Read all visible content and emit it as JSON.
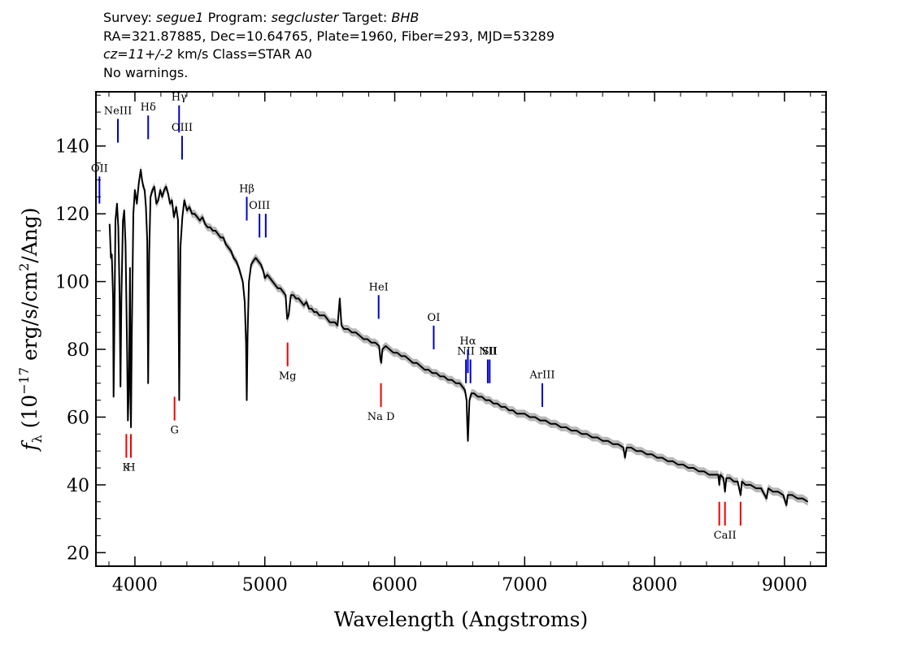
{
  "header": {
    "survey_label": "Survey:",
    "survey": "segue1",
    "program_label": "Program:",
    "program": "segcluster",
    "target_label": "Target:",
    "target": "BHB",
    "coords": "RA=321.87885, Dec=10.64765, Plate=1960, Fiber=293, MJD=53289",
    "cz": "cz=11+/-2",
    "cz_unit": "km/s",
    "class_text": "Class=STAR A0",
    "warnings": "No warnings."
  },
  "colors": {
    "spectrum": "#000000",
    "error_band": "#b0b0b0",
    "emission_line": "#0000cc",
    "absorption_line": "#ee0000"
  },
  "chart_data": {
    "type": "line",
    "xlabel": "Wavelength (Angstroms)",
    "ylabel": "f_λ (10^-17 erg/s/cm^2/Ang)",
    "xlim": [
      3700,
      9320
    ],
    "ylim": [
      16,
      156
    ],
    "x_ticks": [
      "4000",
      "5000",
      "6000",
      "7000",
      "8000",
      "9000"
    ],
    "y_ticks": [
      "20",
      "40",
      "60",
      "80",
      "100",
      "120",
      "140"
    ],
    "grid": false,
    "legend": "none",
    "series": [
      {
        "points": [
          [
            3805,
            117
          ],
          [
            3815,
            107
          ],
          [
            3822,
            108
          ],
          [
            3832,
            95
          ],
          [
            3836,
            66
          ],
          [
            3840,
            80
          ],
          [
            3850,
            118
          ],
          [
            3862,
            123
          ],
          [
            3872,
            116
          ],
          [
            3882,
            96
          ],
          [
            3889,
            69
          ],
          [
            3896,
            95
          ],
          [
            3908,
            118
          ],
          [
            3918,
            121
          ],
          [
            3928,
            111
          ],
          [
            3940,
            80
          ],
          [
            3946,
            59
          ],
          [
            3954,
            70
          ],
          [
            3962,
            104
          ],
          [
            3966,
            65
          ],
          [
            3970,
            57
          ],
          [
            3976,
            84
          ],
          [
            3988,
            120
          ],
          [
            4000,
            127
          ],
          [
            4015,
            123
          ],
          [
            4030,
            129
          ],
          [
            4045,
            133
          ],
          [
            4055,
            130
          ],
          [
            4065,
            128
          ],
          [
            4075,
            127
          ],
          [
            4085,
            122
          ],
          [
            4095,
            112
          ],
          [
            4102,
            70
          ],
          [
            4110,
            108
          ],
          [
            4120,
            125
          ],
          [
            4135,
            127
          ],
          [
            4150,
            128
          ],
          [
            4165,
            123
          ],
          [
            4180,
            124
          ],
          [
            4195,
            127
          ],
          [
            4210,
            125
          ],
          [
            4225,
            127
          ],
          [
            4240,
            128
          ],
          [
            4255,
            126
          ],
          [
            4270,
            123
          ],
          [
            4285,
            124
          ],
          [
            4300,
            119
          ],
          [
            4318,
            122
          ],
          [
            4332,
            118
          ],
          [
            4341,
            65
          ],
          [
            4350,
            110
          ],
          [
            4365,
            119
          ],
          [
            4380,
            124
          ],
          [
            4400,
            121
          ],
          [
            4420,
            122
          ],
          [
            4440,
            120
          ],
          [
            4460,
            120
          ],
          [
            4480,
            119
          ],
          [
            4500,
            118
          ],
          [
            4520,
            119
          ],
          [
            4540,
            117
          ],
          [
            4560,
            116
          ],
          [
            4580,
            116
          ],
          [
            4600,
            115
          ],
          [
            4620,
            115
          ],
          [
            4640,
            114
          ],
          [
            4660,
            113
          ],
          [
            4680,
            113
          ],
          [
            4700,
            111
          ],
          [
            4720,
            110
          ],
          [
            4740,
            109
          ],
          [
            4760,
            107
          ],
          [
            4780,
            106
          ],
          [
            4800,
            104
          ],
          [
            4815,
            102
          ],
          [
            4830,
            100
          ],
          [
            4845,
            94
          ],
          [
            4855,
            82
          ],
          [
            4861,
            65
          ],
          [
            4867,
            84
          ],
          [
            4878,
            100
          ],
          [
            4895,
            105
          ],
          [
            4910,
            106
          ],
          [
            4930,
            107
          ],
          [
            4950,
            106
          ],
          [
            4970,
            105
          ],
          [
            4990,
            103
          ],
          [
            5000,
            101
          ],
          [
            5020,
            102
          ],
          [
            5040,
            101
          ],
          [
            5060,
            100
          ],
          [
            5080,
            99
          ],
          [
            5100,
            98
          ],
          [
            5120,
            98
          ],
          [
            5140,
            97
          ],
          [
            5160,
            96
          ],
          [
            5172,
            89
          ],
          [
            5183,
            90
          ],
          [
            5200,
            96
          ],
          [
            5220,
            96
          ],
          [
            5240,
            95
          ],
          [
            5260,
            95
          ],
          [
            5280,
            94
          ],
          [
            5300,
            93
          ],
          [
            5320,
            94
          ],
          [
            5340,
            92
          ],
          [
            5360,
            92
          ],
          [
            5380,
            91
          ],
          [
            5400,
            91
          ],
          [
            5420,
            90
          ],
          [
            5440,
            90
          ],
          [
            5460,
            90
          ],
          [
            5480,
            89
          ],
          [
            5500,
            88
          ],
          [
            5520,
            88
          ],
          [
            5540,
            88
          ],
          [
            5560,
            87
          ],
          [
            5577,
            95
          ],
          [
            5590,
            87
          ],
          [
            5610,
            86
          ],
          [
            5640,
            86
          ],
          [
            5670,
            85
          ],
          [
            5700,
            85
          ],
          [
            5730,
            84
          ],
          [
            5760,
            83
          ],
          [
            5790,
            83
          ],
          [
            5820,
            82
          ],
          [
            5850,
            82
          ],
          [
            5880,
            81
          ],
          [
            5890,
            77
          ],
          [
            5896,
            76
          ],
          [
            5905,
            80
          ],
          [
            5930,
            81
          ],
          [
            5960,
            80
          ],
          [
            5990,
            79
          ],
          [
            6020,
            79
          ],
          [
            6050,
            78
          ],
          [
            6080,
            78
          ],
          [
            6110,
            77
          ],
          [
            6140,
            76
          ],
          [
            6170,
            76
          ],
          [
            6200,
            75
          ],
          [
            6230,
            74
          ],
          [
            6260,
            74
          ],
          [
            6290,
            73
          ],
          [
            6320,
            73
          ],
          [
            6350,
            72
          ],
          [
            6380,
            72
          ],
          [
            6410,
            71
          ],
          [
            6440,
            71
          ],
          [
            6470,
            70
          ],
          [
            6500,
            70
          ],
          [
            6520,
            69
          ],
          [
            6540,
            68
          ],
          [
            6553,
            65
          ],
          [
            6558,
            58
          ],
          [
            6563,
            53
          ],
          [
            6568,
            58
          ],
          [
            6575,
            65
          ],
          [
            6590,
            67
          ],
          [
            6610,
            67
          ],
          [
            6640,
            66
          ],
          [
            6670,
            66
          ],
          [
            6700,
            65
          ],
          [
            6730,
            65
          ],
          [
            6760,
            64
          ],
          [
            6790,
            64
          ],
          [
            6820,
            63
          ],
          [
            6850,
            63
          ],
          [
            6880,
            62
          ],
          [
            6910,
            62
          ],
          [
            6940,
            61
          ],
          [
            6970,
            61
          ],
          [
            7000,
            61
          ],
          [
            7040,
            60
          ],
          [
            7080,
            60
          ],
          [
            7120,
            59
          ],
          [
            7160,
            59
          ],
          [
            7200,
            58
          ],
          [
            7240,
            58
          ],
          [
            7280,
            57
          ],
          [
            7320,
            57
          ],
          [
            7360,
            56
          ],
          [
            7400,
            56
          ],
          [
            7440,
            55
          ],
          [
            7480,
            55
          ],
          [
            7520,
            54
          ],
          [
            7560,
            54
          ],
          [
            7600,
            53
          ],
          [
            7640,
            53
          ],
          [
            7680,
            52
          ],
          [
            7720,
            52
          ],
          [
            7760,
            51
          ],
          [
            7772,
            48
          ],
          [
            7785,
            51
          ],
          [
            7820,
            51
          ],
          [
            7860,
            50
          ],
          [
            7900,
            50
          ],
          [
            7940,
            49
          ],
          [
            7980,
            49
          ],
          [
            8020,
            48
          ],
          [
            8060,
            48
          ],
          [
            8100,
            47
          ],
          [
            8140,
            47
          ],
          [
            8180,
            46
          ],
          [
            8220,
            46
          ],
          [
            8260,
            45
          ],
          [
            8300,
            45
          ],
          [
            8340,
            44
          ],
          [
            8380,
            44
          ],
          [
            8420,
            43
          ],
          [
            8460,
            43
          ],
          [
            8490,
            43
          ],
          [
            8498,
            40
          ],
          [
            8506,
            43
          ],
          [
            8530,
            42
          ],
          [
            8542,
            38
          ],
          [
            8552,
            42
          ],
          [
            8580,
            42
          ],
          [
            8610,
            41
          ],
          [
            8640,
            41
          ],
          [
            8662,
            37
          ],
          [
            8672,
            41
          ],
          [
            8700,
            40
          ],
          [
            8740,
            40
          ],
          [
            8780,
            39
          ],
          [
            8820,
            39
          ],
          [
            8862,
            36
          ],
          [
            8875,
            39
          ],
          [
            8910,
            38
          ],
          [
            8950,
            38
          ],
          [
            8990,
            37
          ],
          [
            9015,
            34
          ],
          [
            9025,
            37
          ],
          [
            9060,
            37
          ],
          [
            9100,
            36
          ],
          [
            9140,
            36
          ],
          [
            9180,
            35
          ]
        ]
      }
    ],
    "lines": [
      {
        "label": "OII",
        "wave": 3727,
        "kind": "emission",
        "y0": 123,
        "y1": 131
      },
      {
        "label": "NeIII",
        "wave": 3869,
        "kind": "emission",
        "y0": 141,
        "y1": 148
      },
      {
        "label": "Hδ",
        "wave": 4102,
        "kind": "emission",
        "y0": 142,
        "y1": 149
      },
      {
        "label": "Hγ",
        "wave": 4340,
        "kind": "emission",
        "y0": 144,
        "y1": 152
      },
      {
        "label": "OIII",
        "wave": 4363,
        "kind": "emission",
        "y0": 136,
        "y1": 143
      },
      {
        "label": "Hβ",
        "wave": 4861,
        "kind": "emission",
        "y0": 118,
        "y1": 125
      },
      {
        "label": "OIII",
        "wave": 4959,
        "kind": "emission",
        "y0": 113,
        "y1": 120
      },
      {
        "label": "",
        "wave": 5007,
        "kind": "emission",
        "y0": 113,
        "y1": 120
      },
      {
        "label": "HeI",
        "wave": 5876,
        "kind": "emission",
        "y0": 89,
        "y1": 96
      },
      {
        "label": "OI",
        "wave": 6300,
        "kind": "emission",
        "y0": 80,
        "y1": 87
      },
      {
        "label": "NII",
        "wave": 6548,
        "kind": "emission",
        "y0": 70,
        "y1": 77
      },
      {
        "label": "Hα",
        "wave": 6563,
        "kind": "emission",
        "y0": 73,
        "y1": 80
      },
      {
        "label": "",
        "wave": 6583,
        "kind": "emission",
        "y0": 70,
        "y1": 77
      },
      {
        "label": "NII",
        "wave": 6716,
        "kind": "emission",
        "y0": 70,
        "y1": 77
      },
      {
        "label": "SII",
        "wave": 6731,
        "kind": "emission",
        "y0": 70,
        "y1": 77
      },
      {
        "label": "ArIII",
        "wave": 7136,
        "kind": "emission",
        "y0": 63,
        "y1": 70
      },
      {
        "label": "K",
        "wave": 3934,
        "kind": "absorption",
        "y0": 48,
        "y1": 55
      },
      {
        "label": "H",
        "wave": 3969,
        "kind": "absorption",
        "y0": 48,
        "y1": 55
      },
      {
        "label": "G",
        "wave": 4305,
        "kind": "absorption",
        "y0": 59,
        "y1": 66
      },
      {
        "label": "Mg",
        "wave": 5175,
        "kind": "absorption",
        "y0": 75,
        "y1": 82
      },
      {
        "label": "Na D",
        "wave": 5894,
        "kind": "absorption",
        "y0": 63,
        "y1": 70
      },
      {
        "label": "",
        "wave": 8498,
        "kind": "absorption",
        "y0": 28,
        "y1": 35
      },
      {
        "label": "CaII",
        "wave": 8542,
        "kind": "absorption",
        "y0": 28,
        "y1": 35
      },
      {
        "label": "",
        "wave": 8662,
        "kind": "absorption",
        "y0": 28,
        "y1": 35
      }
    ]
  }
}
